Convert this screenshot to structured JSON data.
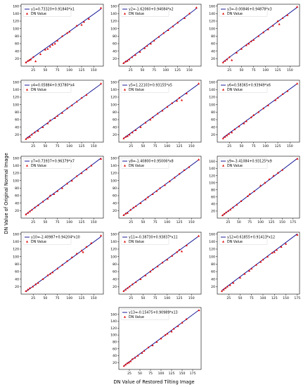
{
  "figure": {
    "xlabel": "DN Value of Restored Tilting Image",
    "ylabel": "DN Value of Original Normal Image"
  },
  "colors": {
    "fit_line": "#00008b",
    "points": "#e00000"
  },
  "chart_data": [
    {
      "type": "scatter",
      "title": "",
      "series": [
        {
          "name": "y1=0.73320+0.91840*x1",
          "kind": "line",
          "slope": 0.9184,
          "intercept": 0.7332
        },
        {
          "name": "DN Value",
          "kind": "scatter",
          "x": [
            10,
            14,
            17,
            20,
            25,
            30,
            40,
            50,
            55,
            60,
            65,
            70,
            75,
            85,
            95,
            100,
            115,
            125,
            130,
            140,
            165
          ],
          "y": [
            10,
            14,
            16,
            18,
            24,
            13,
            32,
            44,
            46,
            52,
            57,
            60,
            68,
            80,
            88,
            92,
            108,
            110,
            118,
            126,
            155
          ]
        }
      ],
      "xticks": [
        25,
        50,
        75,
        100,
        125,
        150
      ],
      "yticks": [
        20,
        40,
        60,
        80,
        100,
        120,
        140,
        160
      ],
      "xlim": [
        0,
        170
      ],
      "ylim": [
        0,
        165
      ]
    },
    {
      "type": "scatter",
      "title": "",
      "series": [
        {
          "name": "y2=-1.62060+0.94084*x2",
          "kind": "line",
          "slope": 0.94084,
          "intercept": -1.6206
        },
        {
          "name": "DN Value",
          "kind": "scatter",
          "x": [
            10,
            14,
            18,
            22,
            28,
            35,
            45,
            55,
            60,
            68,
            75,
            85,
            95,
            105,
            115,
            125,
            140,
            150,
            165
          ],
          "y": [
            8,
            12,
            14,
            18,
            24,
            30,
            38,
            48,
            54,
            60,
            68,
            78,
            88,
            96,
            106,
            116,
            128,
            140,
            156
          ]
        }
      ],
      "xticks": [
        25,
        50,
        75,
        100,
        125,
        150
      ],
      "yticks": [
        20,
        40,
        60,
        80,
        100,
        120,
        140,
        160
      ],
      "xlim": [
        0,
        175
      ],
      "ylim": [
        0,
        165
      ]
    },
    {
      "type": "scatter",
      "title": "",
      "series": [
        {
          "name": "y3=-0.00846+0.94878*x3",
          "kind": "line",
          "slope": 0.94878,
          "intercept": -0.00846
        },
        {
          "name": "DN Value",
          "kind": "scatter",
          "x": [
            12,
            16,
            20,
            25,
            30,
            40,
            50,
            60,
            65,
            70,
            75,
            85,
            95,
            105,
            115,
            125,
            128,
            135,
            145,
            165
          ],
          "y": [
            10,
            14,
            18,
            24,
            16,
            36,
            46,
            56,
            60,
            66,
            70,
            80,
            90,
            98,
            108,
            120,
            112,
            128,
            136,
            158
          ]
        }
      ],
      "xticks": [
        25,
        50,
        75,
        100,
        125,
        150
      ],
      "yticks": [
        20,
        40,
        60,
        80,
        100,
        120,
        140,
        160
      ],
      "xlim": [
        0,
        170
      ],
      "ylim": [
        0,
        165
      ]
    },
    {
      "type": "scatter",
      "title": "",
      "series": [
        {
          "name": "y4=0.05884+0.93780*x4",
          "kind": "line",
          "slope": 0.9378,
          "intercept": 0.05884
        },
        {
          "name": "DN Value",
          "kind": "scatter",
          "x": [
            10,
            14,
            18,
            22,
            28,
            35,
            45,
            55,
            60,
            70,
            75,
            85,
            95,
            105,
            115,
            125,
            135,
            165
          ],
          "y": [
            8,
            12,
            14,
            20,
            26,
            30,
            40,
            50,
            58,
            64,
            70,
            78,
            90,
            98,
            108,
            118,
            126,
            156
          ]
        }
      ],
      "xticks": [
        25,
        50,
        75,
        100,
        125,
        150
      ],
      "yticks": [
        20,
        40,
        60,
        80,
        100,
        120,
        140,
        160
      ],
      "xlim": [
        0,
        170
      ],
      "ylim": [
        0,
        165
      ]
    },
    {
      "type": "scatter",
      "title": "",
      "series": [
        {
          "name": "y5=1.22103+0.93155*x5",
          "kind": "line",
          "slope": 0.93155,
          "intercept": 1.22103
        },
        {
          "name": "DN Value",
          "kind": "scatter",
          "x": [
            10,
            14,
            18,
            22,
            28,
            35,
            45,
            55,
            65,
            70,
            80,
            90,
            100,
            110,
            120,
            125,
            130,
            140,
            165
          ],
          "y": [
            10,
            14,
            16,
            20,
            26,
            32,
            40,
            52,
            60,
            66,
            76,
            84,
            94,
            104,
            110,
            118,
            112,
            130,
            156
          ]
        }
      ],
      "xticks": [
        25,
        50,
        75,
        100,
        125,
        150
      ],
      "yticks": [
        20,
        40,
        60,
        80,
        100,
        120,
        140,
        160
      ],
      "xlim": [
        0,
        170
      ],
      "ylim": [
        0,
        165
      ]
    },
    {
      "type": "scatter",
      "title": "",
      "series": [
        {
          "name": "y6=0.58365+0.93949*x6",
          "kind": "line",
          "slope": 0.93949,
          "intercept": 0.58365
        },
        {
          "name": "DN Value",
          "kind": "scatter",
          "x": [
            12,
            16,
            20,
            24,
            30,
            36,
            45,
            55,
            60,
            70,
            75,
            85,
            95,
            105,
            120,
            125,
            135,
            145,
            165
          ],
          "y": [
            10,
            14,
            18,
            22,
            26,
            34,
            42,
            50,
            56,
            66,
            72,
            80,
            90,
            98,
            112,
            118,
            128,
            136,
            156
          ]
        }
      ],
      "xticks": [
        25,
        50,
        75,
        100,
        125,
        150
      ],
      "yticks": [
        20,
        40,
        60,
        80,
        100,
        120,
        140,
        160
      ],
      "xlim": [
        0,
        170
      ],
      "ylim": [
        0,
        165
      ]
    },
    {
      "type": "scatter",
      "title": "",
      "series": [
        {
          "name": "y7=0.73937+0.96379*x7",
          "kind": "line",
          "slope": 0.96379,
          "intercept": 0.73937
        },
        {
          "name": "DN Value",
          "kind": "scatter",
          "x": [
            10,
            14,
            18,
            22,
            28,
            35,
            45,
            55,
            60,
            68,
            75,
            85,
            95,
            105,
            115,
            125,
            135,
            145,
            165
          ],
          "y": [
            10,
            14,
            18,
            22,
            28,
            34,
            44,
            52,
            60,
            64,
            72,
            80,
            92,
            100,
            112,
            120,
            130,
            140,
            158
          ]
        }
      ],
      "xticks": [
        25,
        50,
        75,
        100,
        125,
        150
      ],
      "yticks": [
        20,
        40,
        60,
        80,
        100,
        120,
        140,
        160
      ],
      "xlim": [
        0,
        170
      ],
      "ylim": [
        0,
        165
      ]
    },
    {
      "type": "scatter",
      "title": "",
      "series": [
        {
          "name": "y8=-1.40800+0.95006*x8",
          "kind": "line",
          "slope": 0.95006,
          "intercept": -1.408
        },
        {
          "name": "DN Value",
          "kind": "scatter",
          "x": [
            10,
            14,
            18,
            24,
            30,
            35,
            45,
            55,
            60,
            70,
            78,
            85,
            95,
            105,
            115,
            125,
            135,
            145,
            165
          ],
          "y": [
            8,
            12,
            14,
            22,
            28,
            32,
            40,
            50,
            56,
            64,
            72,
            80,
            88,
            98,
            108,
            118,
            128,
            136,
            156
          ]
        }
      ],
      "xticks": [
        25,
        50,
        75,
        100,
        125,
        150
      ],
      "yticks": [
        20,
        40,
        60,
        80,
        100,
        120,
        140,
        160
      ],
      "xlim": [
        0,
        170
      ],
      "ylim": [
        0,
        165
      ]
    },
    {
      "type": "scatter",
      "title": "",
      "series": [
        {
          "name": "y9=-3.41084+0.93125*x9",
          "kind": "line",
          "slope": 0.93125,
          "intercept": -3.41084
        },
        {
          "name": "DN Value",
          "kind": "scatter",
          "x": [
            12,
            16,
            20,
            25,
            30,
            36,
            45,
            55,
            70,
            75,
            85,
            100,
            110,
            120,
            130,
            140,
            150,
            185
          ],
          "y": [
            8,
            12,
            16,
            20,
            24,
            30,
            38,
            48,
            62,
            68,
            76,
            92,
            100,
            110,
            120,
            128,
            136,
            168
          ]
        }
      ],
      "xticks": [
        25,
        50,
        75,
        100,
        125,
        150,
        175
      ],
      "yticks": [
        20,
        40,
        60,
        80,
        100,
        120,
        140,
        160
      ],
      "xlim": [
        0,
        190
      ],
      "ylim": [
        0,
        175
      ]
    },
    {
      "type": "scatter",
      "title": "",
      "series": [
        {
          "name": "y10=-2.40987+0.94204*x10",
          "kind": "line",
          "slope": 0.94204,
          "intercept": -2.40987
        },
        {
          "name": "DN Value",
          "kind": "scatter",
          "x": [
            10,
            14,
            18,
            24,
            30,
            35,
            45,
            55,
            60,
            65,
            75,
            85,
            95,
            105,
            115,
            125,
            128,
            135,
            145,
            165
          ],
          "y": [
            8,
            12,
            16,
            20,
            26,
            30,
            40,
            50,
            54,
            58,
            68,
            78,
            88,
            98,
            108,
            116,
            112,
            126,
            136,
            156
          ]
        }
      ],
      "xticks": [
        25,
        50,
        75,
        100,
        125,
        150
      ],
      "yticks": [
        20,
        40,
        60,
        80,
        100,
        120,
        140,
        160
      ],
      "xlim": [
        0,
        170
      ],
      "ylim": [
        0,
        165
      ]
    },
    {
      "type": "scatter",
      "title": "",
      "series": [
        {
          "name": "y11=-0.38730+0.93837*x11",
          "kind": "line",
          "slope": 0.93837,
          "intercept": -0.3873
        },
        {
          "name": "DN Value",
          "kind": "scatter",
          "x": [
            10,
            14,
            18,
            22,
            28,
            35,
            45,
            55,
            65,
            70,
            80,
            90,
            100,
            110,
            120,
            125,
            130,
            140,
            165
          ],
          "y": [
            8,
            12,
            16,
            20,
            26,
            32,
            40,
            50,
            60,
            66,
            74,
            84,
            92,
            102,
            112,
            118,
            114,
            130,
            155
          ]
        }
      ],
      "xticks": [
        25,
        50,
        75,
        100,
        125,
        150
      ],
      "yticks": [
        20,
        40,
        60,
        80,
        100,
        120,
        140,
        160
      ],
      "xlim": [
        0,
        170
      ],
      "ylim": [
        0,
        165
      ]
    },
    {
      "type": "scatter",
      "title": "",
      "series": [
        {
          "name": "y12=0.61855+0.91413*x12",
          "kind": "line",
          "slope": 0.91413,
          "intercept": 0.61855
        },
        {
          "name": "DN Value",
          "kind": "scatter",
          "x": [
            10,
            14,
            18,
            22,
            28,
            35,
            50,
            60,
            70,
            75,
            85,
            95,
            100,
            110,
            120,
            125,
            130,
            140,
            150,
            175
          ],
          "y": [
            8,
            12,
            16,
            20,
            24,
            30,
            44,
            54,
            62,
            68,
            78,
            86,
            92,
            100,
            110,
            112,
            118,
            126,
            134,
            158
          ]
        }
      ],
      "xticks": [
        25,
        50,
        75,
        100,
        125,
        150,
        175
      ],
      "yticks": [
        20,
        40,
        60,
        80,
        100,
        120,
        140,
        160
      ],
      "xlim": [
        0,
        180
      ],
      "ylim": [
        0,
        165
      ]
    },
    {
      "type": "scatter",
      "title": "",
      "series": [
        {
          "name": "y13=-0.15475+0.90989*x13",
          "kind": "line",
          "slope": 0.90989,
          "intercept": -0.15475
        },
        {
          "name": "DN Value",
          "kind": "scatter",
          "x": [
            12,
            16,
            20,
            24,
            28,
            32,
            38,
            45,
            55,
            60,
            70,
            80,
            90,
            100,
            110,
            115,
            125,
            130,
            140,
            150,
            160,
            190
          ],
          "y": [
            10,
            14,
            18,
            20,
            24,
            30,
            34,
            40,
            48,
            54,
            64,
            70,
            80,
            90,
            100,
            104,
            110,
            118,
            126,
            136,
            146,
            172
          ]
        }
      ],
      "xticks": [
        25,
        50,
        75,
        100,
        125,
        150,
        175
      ],
      "yticks": [
        20,
        40,
        60,
        80,
        100,
        120,
        140,
        160
      ],
      "xlim": [
        0,
        195
      ],
      "ylim": [
        0,
        180
      ]
    }
  ]
}
